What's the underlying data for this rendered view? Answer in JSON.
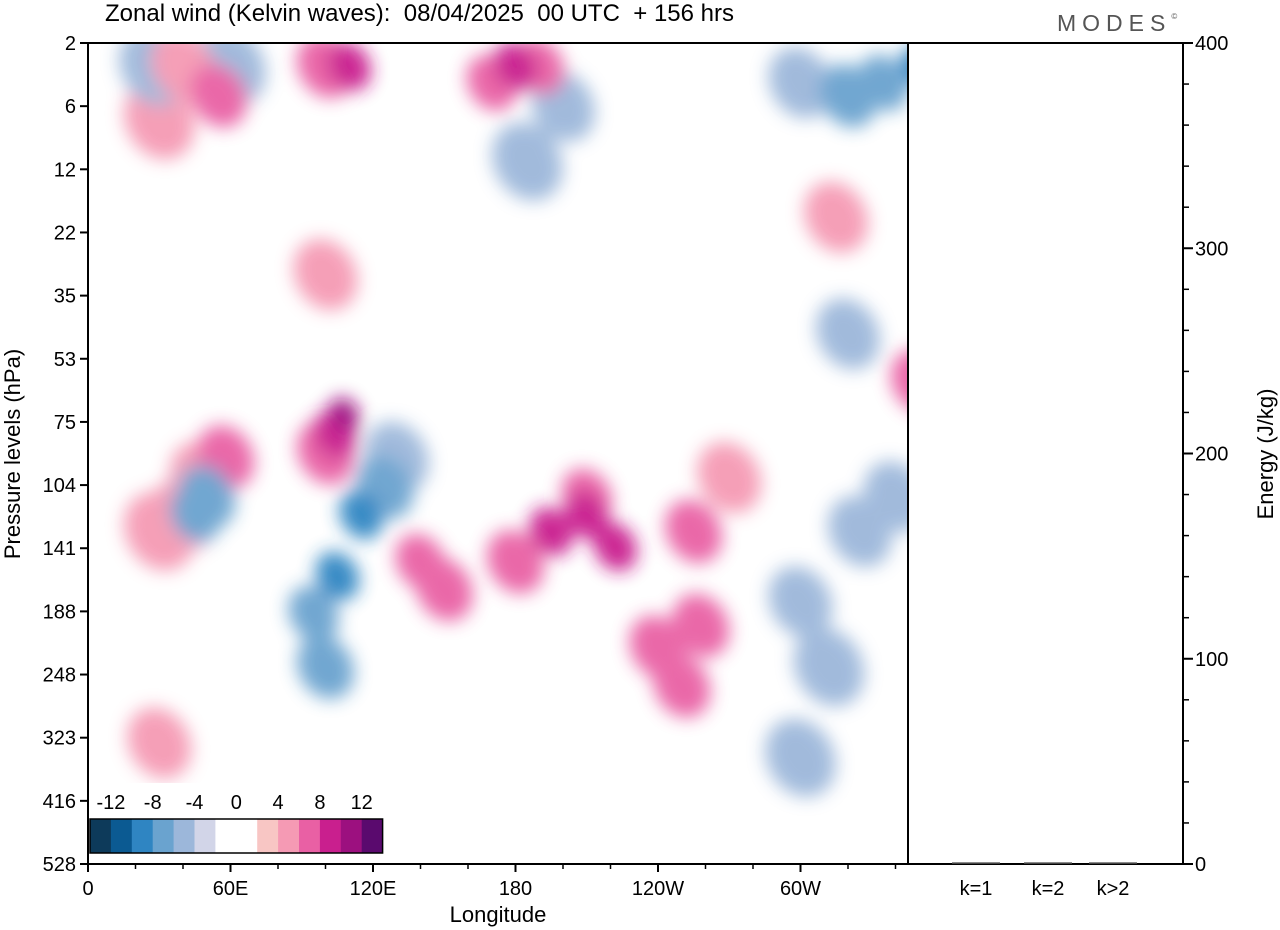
{
  "title": "Zonal wind (Kelvin waves):  08/04/2025  00 UTC  + 156 hrs",
  "brand": "MODES",
  "brand_mark": "©",
  "colors": {
    "neg_scale": [
      "#0d3a5a",
      "#0b5a92",
      "#2f85c2",
      "#6aa3cf",
      "#9cb7da",
      "#d2d5e8"
    ],
    "zero": "#ffffff",
    "pos_scale": [
      "#f8c6c4",
      "#f59ab4",
      "#e960a4",
      "#c91f8e",
      "#9c107f",
      "#5a0a6e"
    ]
  },
  "chart_data": [
    {
      "type": "heatmap",
      "title": "Zonal wind (Kelvin waves):  08/04/2025  00 UTC  + 156 hrs",
      "xlabel": "Longitude",
      "ylabel": "Pressure levels (hPa)",
      "x_ticks": [
        "0",
        "60E",
        "120E",
        "180",
        "120W",
        "60W"
      ],
      "y_ticks": [
        "2",
        "6",
        "12",
        "22",
        "35",
        "53",
        "75",
        "104",
        "141",
        "188",
        "248",
        "323",
        "416",
        "528"
      ],
      "y_scale": "log",
      "legend": {
        "position": "bottom-left",
        "labels": [
          "-12",
          "-8",
          "-4",
          "0",
          "4",
          "8",
          "12"
        ]
      },
      "features": [
        {
          "lon": 210,
          "hPa": 110,
          "value": 5
        },
        {
          "lon": 180,
          "hPa": 150,
          "value": 4
        },
        {
          "lon": 195,
          "hPa": 130,
          "value": 6
        },
        {
          "lon": 210,
          "hPa": 120,
          "value": 6
        },
        {
          "lon": 222,
          "hPa": 140,
          "value": 6
        },
        {
          "lon": 150,
          "hPa": 170,
          "value": 4
        },
        {
          "lon": 140,
          "hPa": 150,
          "value": 5
        },
        {
          "lon": 240,
          "hPa": 220,
          "value": 4
        },
        {
          "lon": 255,
          "hPa": 130,
          "value": 4
        },
        {
          "lon": 270,
          "hPa": 100,
          "value": 3
        },
        {
          "lon": 100,
          "hPa": 88,
          "value": 4
        },
        {
          "lon": 104,
          "hPa": 80,
          "value": 6
        },
        {
          "lon": 108,
          "hPa": 72,
          "value": 8
        },
        {
          "lon": 58,
          "hPa": 90,
          "value": 4
        },
        {
          "lon": 48,
          "hPa": 100,
          "value": 3
        },
        {
          "lon": 40,
          "hPa": 120,
          "value": 3
        },
        {
          "lon": 30,
          "hPa": 130,
          "value": 2
        },
        {
          "lon": 105,
          "hPa": 160,
          "value": -6
        },
        {
          "lon": 95,
          "hPa": 190,
          "value": -5
        },
        {
          "lon": 115,
          "hPa": 120,
          "value": -6
        },
        {
          "lon": 125,
          "hPa": 105,
          "value": -4
        },
        {
          "lon": 100,
          "hPa": 240,
          "value": -4
        },
        {
          "lon": 130,
          "hPa": 90,
          "value": -3
        },
        {
          "lon": 45,
          "hPa": 120,
          "value": -5
        },
        {
          "lon": 50,
          "hPa": 110,
          "value": -4
        },
        {
          "lon": 300,
          "hPa": 180,
          "value": -3
        },
        {
          "lon": 312,
          "hPa": 240,
          "value": -2
        },
        {
          "lon": 325,
          "hPa": 130,
          "value": -3
        },
        {
          "lon": 340,
          "hPa": 110,
          "value": -3
        },
        {
          "lon": 350,
          "hPa": 60,
          "value": 4
        },
        {
          "lon": 362,
          "hPa": 58,
          "value": 3
        },
        {
          "lon": 320,
          "hPa": 45,
          "value": -3
        },
        {
          "lon": 320,
          "hPa": 5,
          "value": -4
        },
        {
          "lon": 335,
          "hPa": 4,
          "value": -5
        },
        {
          "lon": 350,
          "hPa": 3,
          "value": -7
        },
        {
          "lon": 300,
          "hPa": 4,
          "value": -3
        },
        {
          "lon": 170,
          "hPa": 4,
          "value": 5
        },
        {
          "lon": 180,
          "hPa": 3,
          "value": 6
        },
        {
          "lon": 190,
          "hPa": 3,
          "value": 5
        },
        {
          "lon": 100,
          "hPa": 3,
          "value": 4
        },
        {
          "lon": 110,
          "hPa": 3,
          "value": 6
        },
        {
          "lon": 55,
          "hPa": 5,
          "value": 4
        },
        {
          "lon": 40,
          "hPa": 3,
          "value": 3
        },
        {
          "lon": 30,
          "hPa": 7,
          "value": 2
        },
        {
          "lon": 200,
          "hPa": 6,
          "value": -3
        },
        {
          "lon": 185,
          "hPa": 11,
          "value": -2
        },
        {
          "lon": 28,
          "hPa": 3,
          "value": -2
        },
        {
          "lon": 60,
          "hPa": 3,
          "value": -2
        },
        {
          "lon": 100,
          "hPa": 30,
          "value": 3
        },
        {
          "lon": 315,
          "hPa": 19,
          "value": 3
        },
        {
          "lon": 30,
          "hPa": 330,
          "value": 3
        },
        {
          "lon": 300,
          "hPa": 350,
          "value": -2
        },
        {
          "lon": 250,
          "hPa": 260,
          "value": 4
        },
        {
          "lon": 258,
          "hPa": 200,
          "value": 4
        }
      ]
    },
    {
      "type": "bar",
      "categories": [
        "k=1",
        "k=2",
        "k>2"
      ],
      "values": [
        0.3,
        0.3,
        0.3
      ],
      "ylabel": "Energy (J/kg)",
      "ylim": [
        0,
        400
      ],
      "y_ticks": [
        "0",
        "100",
        "200",
        "300",
        "400"
      ]
    }
  ]
}
